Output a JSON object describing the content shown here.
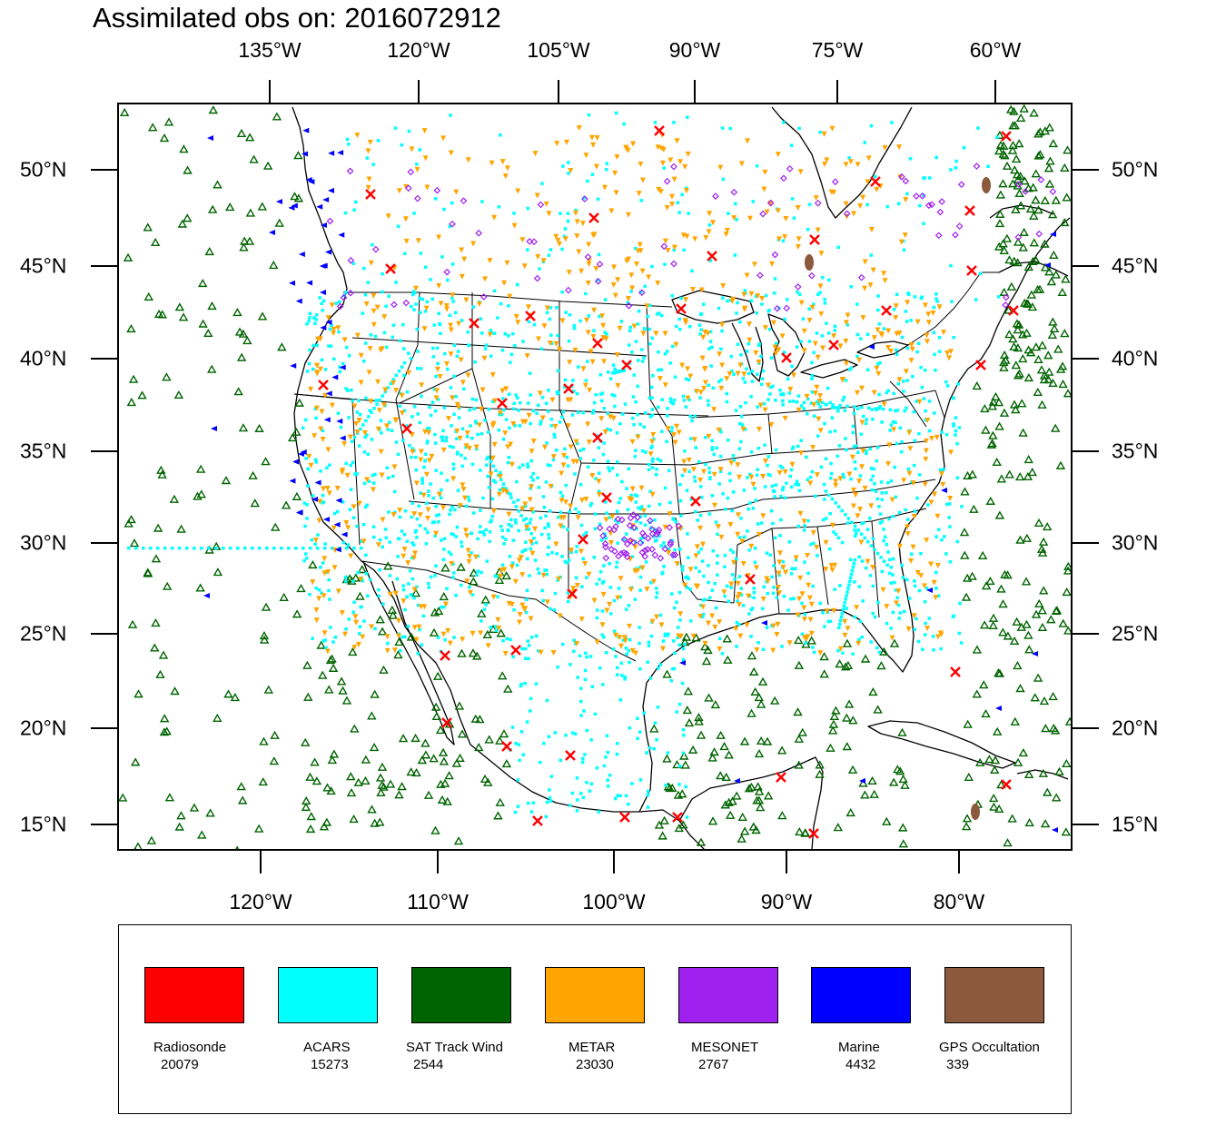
{
  "title": "Assimilated obs on: 2016072912",
  "axes": {
    "top_lon_labels": [
      "135°W",
      "120°W",
      "105°W",
      "90°W",
      "75°W",
      "60°W"
    ],
    "bottom_lon_labels": [
      "120°W",
      "110°W",
      "100°W",
      "90°W",
      "80°W"
    ],
    "lat_labels": [
      "50°N",
      "45°N",
      "40°N",
      "35°N",
      "30°N",
      "25°N",
      "20°N",
      "15°N"
    ]
  },
  "legend": [
    {
      "name": "Radiosonde",
      "count": "20079",
      "color": "#ff0000"
    },
    {
      "name": "ACARS",
      "count": "15273",
      "color": "#00ffff"
    },
    {
      "name": "SAT Track Wind",
      "count": "2544",
      "color": "#006400"
    },
    {
      "name": "METAR",
      "count": "23030",
      "color": "#ffa500"
    },
    {
      "name": "MESONET",
      "count": "2767",
      "color": "#a020f0"
    },
    {
      "name": "Marine",
      "count": "4432",
      "color": "#0000ff"
    },
    {
      "name": "GPS Occultation",
      "count": "339",
      "color": "#8b5a3c"
    }
  ],
  "colors": {
    "land_outline": "#000000",
    "frame": "#000000",
    "background": "#ffffff"
  }
}
